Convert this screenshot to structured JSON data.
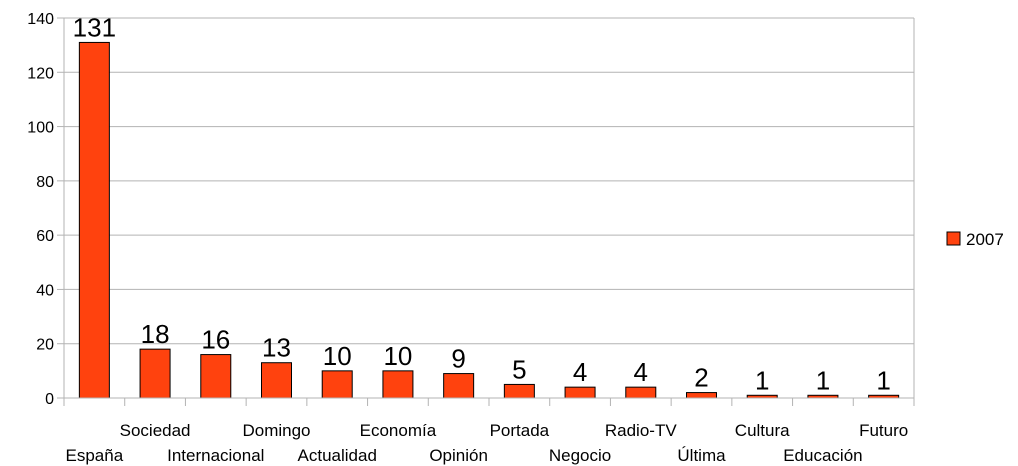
{
  "chart_data": {
    "type": "bar",
    "categories": [
      "España",
      "Sociedad",
      "Internacional",
      "Domingo",
      "Actualidad",
      "Economía",
      "Opinión",
      "Portada",
      "Negocio",
      "Radio-TV",
      "Última",
      "Cultura",
      "Educación",
      "Futuro"
    ],
    "series": [
      {
        "name": "2007",
        "values": [
          131,
          18,
          16,
          13,
          10,
          10,
          9,
          5,
          4,
          4,
          2,
          1,
          1,
          1
        ]
      }
    ],
    "title": "",
    "xlabel": "",
    "ylabel": "",
    "ylim": [
      0,
      140
    ],
    "yticks": [
      "0",
      "20",
      "40",
      "60",
      "80",
      "100",
      "120",
      "140"
    ],
    "grid": true,
    "legend_position": "right",
    "colors": {
      "bar": "#ff420e",
      "bar_stroke": "#000000",
      "grid": "#b3b3b3",
      "axis": "#b3b3b3"
    }
  }
}
